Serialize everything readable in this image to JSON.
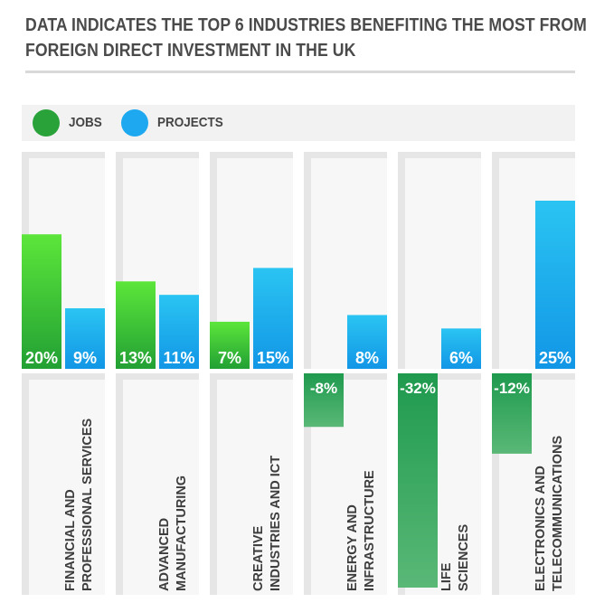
{
  "header": {
    "title_line1": "DATA INDICATES THE TOP 6 INDUSTRIES BENEFITING THE MOST FROM",
    "title_line2": "FOREIGN DIRECT INVESTMENT IN THE UK"
  },
  "legend": {
    "items": [
      {
        "label": "JOBS",
        "color": "#2aa23a"
      },
      {
        "label": "PROJECTS",
        "color": "#1ea8f0"
      }
    ]
  },
  "colors": {
    "jobs_top": "#5ce63a",
    "jobs_bottom": "#22a034",
    "jobs_negative": "#1e9a4e",
    "projects_top": "#2ac4f2",
    "projects_bottom": "#1296e6",
    "column_bg": "#e6e6e6",
    "column_inner": "#f7f7f7"
  },
  "chart_data": {
    "type": "bar",
    "title": "DATA INDICATES THE TOP 6 INDUSTRIES BENEFITING THE MOST FROM FOREIGN DIRECT INVESTMENT IN THE UK",
    "categories": [
      [
        "FINANCIAL AND",
        "PROFESSIONAL SERVICES"
      ],
      [
        "ADVANCED",
        "MANUFACTURING"
      ],
      [
        "CREATIVE",
        "INDUSTRIES AND ICT"
      ],
      [
        "ENERGY AND",
        "INFRASTRUCTURE"
      ],
      [
        "LIFE",
        "SCIENCES"
      ],
      [
        "ELECTRONICS AND",
        "TELECOMMUNICATIONS"
      ]
    ],
    "series": [
      {
        "name": "JOBS",
        "values": [
          20,
          13,
          7,
          -8,
          -32,
          -12
        ],
        "labels": [
          "20%",
          "13%",
          "7%",
          "-8%",
          "-32%",
          "-12%"
        ]
      },
      {
        "name": "PROJECTS",
        "values": [
          9,
          11,
          15,
          8,
          6,
          25
        ],
        "labels": [
          "9%",
          "11%",
          "15%",
          "8%",
          "6%",
          "25%"
        ]
      }
    ],
    "ylim": [
      -32,
      25
    ],
    "xlabel": "",
    "ylabel": ""
  }
}
